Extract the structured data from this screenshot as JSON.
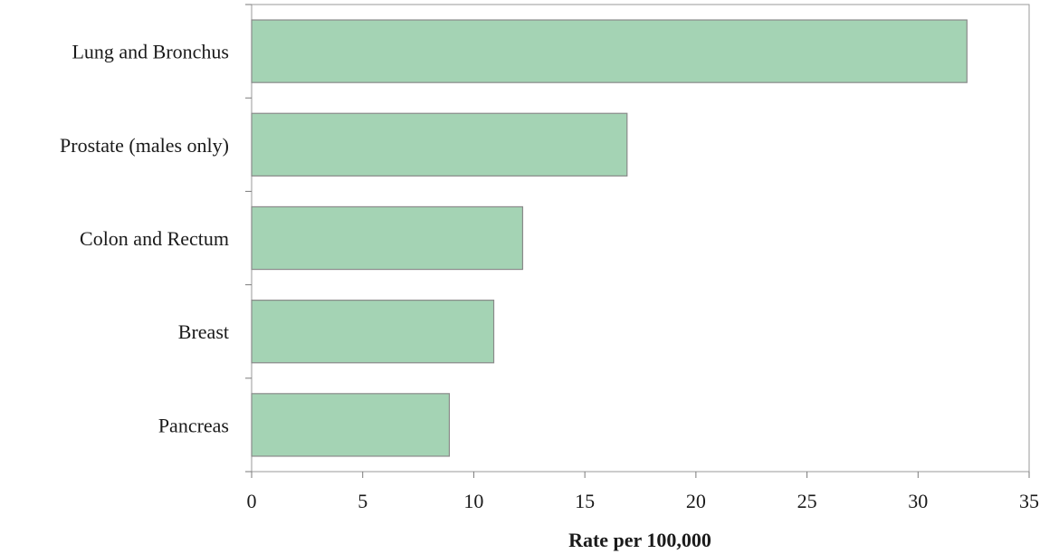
{
  "chart_data": {
    "type": "bar",
    "orientation": "horizontal",
    "categories": [
      "Lung and Bronchus",
      "Prostate (males only)",
      "Colon and Rectum",
      "Breast",
      "Pancreas"
    ],
    "values": [
      32.2,
      16.9,
      12.2,
      10.9,
      8.9
    ],
    "xlabel": "Rate per 100,000",
    "ylabel": "",
    "xlim": [
      0,
      35
    ],
    "xticks": [
      0,
      5,
      10,
      15,
      20,
      25,
      30,
      35
    ],
    "grid": false,
    "bar_color": "#a4d3b4",
    "bar_edge_color": "#8a8a8a"
  }
}
